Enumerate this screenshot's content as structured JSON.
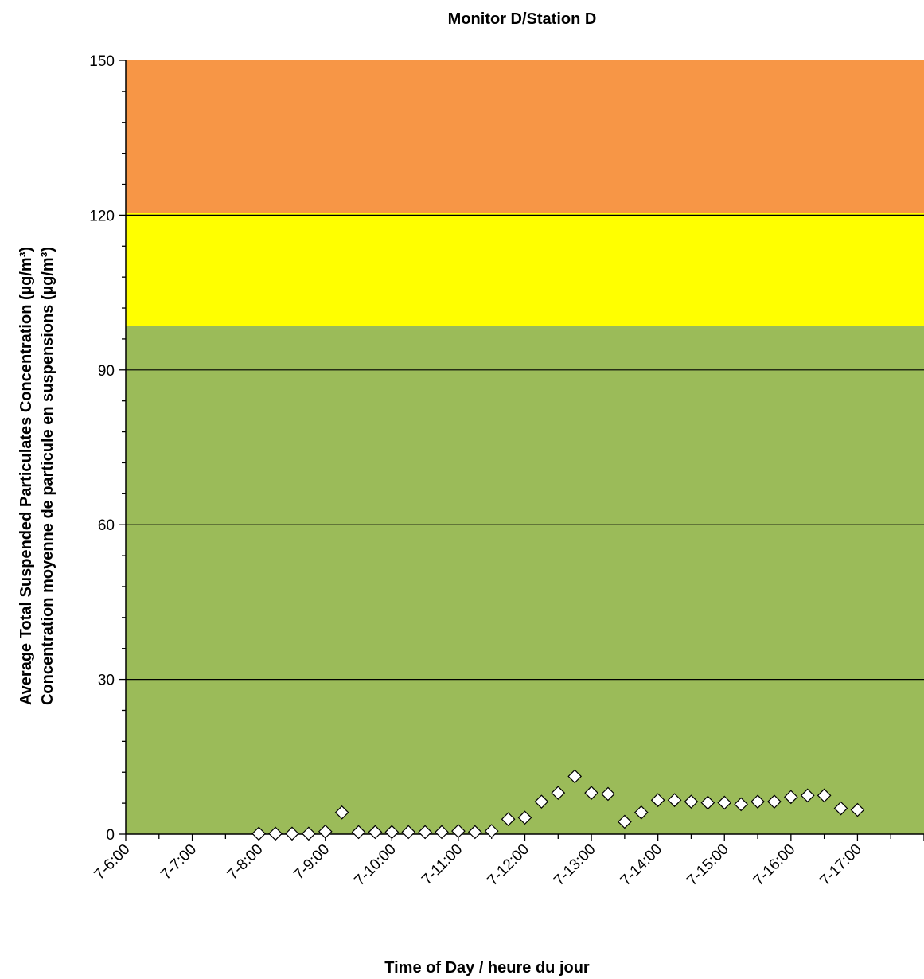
{
  "chart_data": {
    "type": "scatter",
    "title": "Monitor D/Station D",
    "xlabel": "Time of Day / heure du jour",
    "ylabel_line1": "Average Total Suspended Particulates Concentration (µg/m³)",
    "ylabel_line2": "Concentration moyenne de particule en suspensions (µg/m³)",
    "ylim": [
      0,
      150
    ],
    "y_ticks": [
      "0",
      "30",
      "60",
      "90",
      "120",
      "150"
    ],
    "xlim": [
      6,
      18
    ],
    "x_tick_labels": [
      "7-6:00",
      "7-7:00",
      "7-8:00",
      "7-9:00",
      "7-10:00",
      "7-11:00",
      "7-12:00",
      "7-13:00",
      "7-14:00",
      "7-15:00",
      "7-16:00",
      "7-17:00"
    ],
    "grid": true,
    "bands": [
      {
        "from": 0,
        "to": 98.5,
        "color": "#9bbb59"
      },
      {
        "from": 98.5,
        "to": 120.5,
        "color": "#ffff00"
      },
      {
        "from": 120.5,
        "to": 150,
        "color": "#f79646"
      }
    ],
    "marker": "diamond",
    "marker_color": "#ffffff",
    "points": [
      {
        "x": 8.0,
        "y": 0.1
      },
      {
        "x": 8.25,
        "y": 0.1
      },
      {
        "x": 8.5,
        "y": 0.1
      },
      {
        "x": 8.75,
        "y": 0.1
      },
      {
        "x": 9.0,
        "y": 0.5
      },
      {
        "x": 9.25,
        "y": 4.2
      },
      {
        "x": 9.5,
        "y": 0.4
      },
      {
        "x": 9.75,
        "y": 0.4
      },
      {
        "x": 10.0,
        "y": 0.4
      },
      {
        "x": 10.25,
        "y": 0.4
      },
      {
        "x": 10.5,
        "y": 0.4
      },
      {
        "x": 10.75,
        "y": 0.4
      },
      {
        "x": 11.0,
        "y": 0.6
      },
      {
        "x": 11.25,
        "y": 0.4
      },
      {
        "x": 11.5,
        "y": 0.6
      },
      {
        "x": 11.75,
        "y": 2.9
      },
      {
        "x": 12.0,
        "y": 3.2
      },
      {
        "x": 12.25,
        "y": 6.3
      },
      {
        "x": 12.5,
        "y": 8.0
      },
      {
        "x": 12.75,
        "y": 11.2
      },
      {
        "x": 13.0,
        "y": 8.0
      },
      {
        "x": 13.25,
        "y": 7.8
      },
      {
        "x": 13.5,
        "y": 2.4
      },
      {
        "x": 13.75,
        "y": 4.2
      },
      {
        "x": 14.0,
        "y": 6.6
      },
      {
        "x": 14.25,
        "y": 6.6
      },
      {
        "x": 14.5,
        "y": 6.3
      },
      {
        "x": 14.75,
        "y": 6.1
      },
      {
        "x": 15.0,
        "y": 6.1
      },
      {
        "x": 15.25,
        "y": 5.8
      },
      {
        "x": 15.5,
        "y": 6.3
      },
      {
        "x": 15.75,
        "y": 6.3
      },
      {
        "x": 16.0,
        "y": 7.2
      },
      {
        "x": 16.25,
        "y": 7.5
      },
      {
        "x": 16.5,
        "y": 7.5
      },
      {
        "x": 16.75,
        "y": 5.0
      },
      {
        "x": 17.0,
        "y": 4.7
      }
    ]
  }
}
